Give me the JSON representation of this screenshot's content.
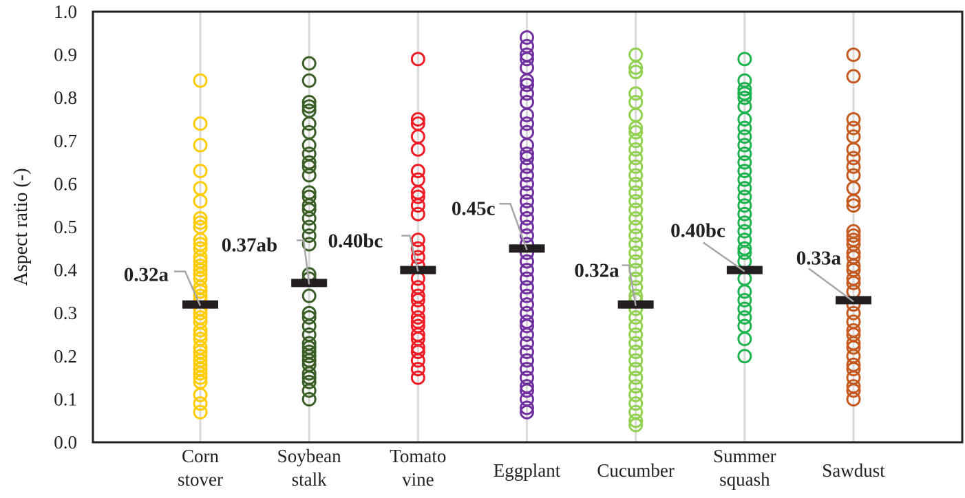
{
  "chart_data": {
    "type": "scatter",
    "subtype": "dot-strip-plot-with-means",
    "title": "",
    "xlabel": "",
    "ylabel": "Aspect ratio (-)",
    "ylim": [
      0.0,
      1.0
    ],
    "yticks": [
      "0.0",
      "0.1",
      "0.2",
      "0.3",
      "0.4",
      "0.5",
      "0.6",
      "0.7",
      "0.8",
      "0.9",
      "1.0"
    ],
    "grid": "vertical lines at each category",
    "legend": "none",
    "categories": [
      {
        "lines": [
          "Corn",
          "stover"
        ]
      },
      {
        "lines": [
          "Soybean",
          "stalk"
        ]
      },
      {
        "lines": [
          "Tomato",
          "vine"
        ]
      },
      {
        "lines": [
          "Eggplant"
        ]
      },
      {
        "lines": [
          "Cucumber"
        ]
      },
      {
        "lines": [
          "Summer",
          "squash"
        ]
      },
      {
        "lines": [
          "Sawdust"
        ]
      }
    ],
    "series": [
      {
        "name": "Corn stover",
        "color": "#ffcc00",
        "mean": 0.32,
        "mean_label": "0.32a",
        "values": [
          0.84,
          0.74,
          0.69,
          0.63,
          0.59,
          0.56,
          0.52,
          0.51,
          0.5,
          0.47,
          0.46,
          0.45,
          0.43,
          0.42,
          0.41,
          0.4,
          0.39,
          0.38,
          0.36,
          0.35,
          0.34,
          0.33,
          0.31,
          0.3,
          0.29,
          0.28,
          0.26,
          0.25,
          0.24,
          0.22,
          0.21,
          0.2,
          0.19,
          0.18,
          0.17,
          0.16,
          0.15,
          0.14,
          0.11,
          0.09,
          0.07
        ]
      },
      {
        "name": "Soybean stalk",
        "color": "#3a5e26",
        "mean": 0.37,
        "mean_label": "0.37ab",
        "values": [
          0.88,
          0.84,
          0.79,
          0.78,
          0.77,
          0.74,
          0.72,
          0.69,
          0.67,
          0.65,
          0.64,
          0.62,
          0.58,
          0.57,
          0.55,
          0.54,
          0.52,
          0.5,
          0.48,
          0.46,
          0.39,
          0.38,
          0.34,
          0.3,
          0.29,
          0.27,
          0.25,
          0.23,
          0.22,
          0.21,
          0.2,
          0.19,
          0.18,
          0.16,
          0.15,
          0.14,
          0.12,
          0.1
        ]
      },
      {
        "name": "Tomato vine",
        "color": "#ee1c25",
        "mean": 0.4,
        "mean_label": "0.40bc",
        "values": [
          0.89,
          0.75,
          0.74,
          0.71,
          0.68,
          0.63,
          0.61,
          0.58,
          0.57,
          0.55,
          0.53,
          0.47,
          0.45,
          0.43,
          0.41,
          0.38,
          0.36,
          0.34,
          0.33,
          0.31,
          0.29,
          0.28,
          0.27,
          0.25,
          0.24,
          0.22,
          0.21,
          0.19,
          0.17,
          0.15
        ]
      },
      {
        "name": "Eggplant",
        "color": "#7030a0",
        "mean": 0.45,
        "mean_label": "0.45c",
        "values": [
          0.94,
          0.92,
          0.9,
          0.89,
          0.87,
          0.84,
          0.83,
          0.81,
          0.79,
          0.76,
          0.74,
          0.72,
          0.69,
          0.67,
          0.66,
          0.64,
          0.62,
          0.6,
          0.58,
          0.56,
          0.54,
          0.52,
          0.5,
          0.48,
          0.46,
          0.44,
          0.42,
          0.4,
          0.38,
          0.36,
          0.34,
          0.32,
          0.3,
          0.28,
          0.27,
          0.25,
          0.23,
          0.21,
          0.19,
          0.17,
          0.15,
          0.13,
          0.12,
          0.1,
          0.08,
          0.07
        ]
      },
      {
        "name": "Cucumber",
        "color": "#92d050",
        "mean": 0.32,
        "mean_label": "0.32a",
        "values": [
          0.9,
          0.87,
          0.86,
          0.81,
          0.79,
          0.76,
          0.73,
          0.72,
          0.7,
          0.68,
          0.66,
          0.64,
          0.62,
          0.6,
          0.58,
          0.56,
          0.54,
          0.52,
          0.5,
          0.48,
          0.46,
          0.44,
          0.42,
          0.4,
          0.38,
          0.36,
          0.34,
          0.33,
          0.31,
          0.29,
          0.27,
          0.25,
          0.23,
          0.21,
          0.19,
          0.17,
          0.15,
          0.13,
          0.11,
          0.09,
          0.07,
          0.05,
          0.04
        ]
      },
      {
        "name": "Summer squash",
        "color": "#1db34f",
        "mean": 0.4,
        "mean_label": "0.40bc",
        "values": [
          0.89,
          0.84,
          0.82,
          0.81,
          0.8,
          0.78,
          0.75,
          0.73,
          0.71,
          0.69,
          0.67,
          0.65,
          0.63,
          0.61,
          0.59,
          0.57,
          0.55,
          0.53,
          0.51,
          0.49,
          0.47,
          0.45,
          0.44,
          0.42,
          0.38,
          0.35,
          0.33,
          0.31,
          0.29,
          0.27,
          0.24,
          0.2
        ]
      },
      {
        "name": "Sawdust",
        "color": "#c55a20",
        "mean": 0.33,
        "mean_label": "0.33a",
        "values": [
          0.9,
          0.85,
          0.75,
          0.73,
          0.71,
          0.68,
          0.66,
          0.64,
          0.62,
          0.59,
          0.56,
          0.55,
          0.49,
          0.48,
          0.47,
          0.46,
          0.44,
          0.43,
          0.41,
          0.4,
          0.38,
          0.37,
          0.35,
          0.32,
          0.3,
          0.28,
          0.26,
          0.25,
          0.23,
          0.22,
          0.2,
          0.18,
          0.17,
          0.15,
          0.13,
          0.12,
          0.1
        ]
      }
    ]
  }
}
